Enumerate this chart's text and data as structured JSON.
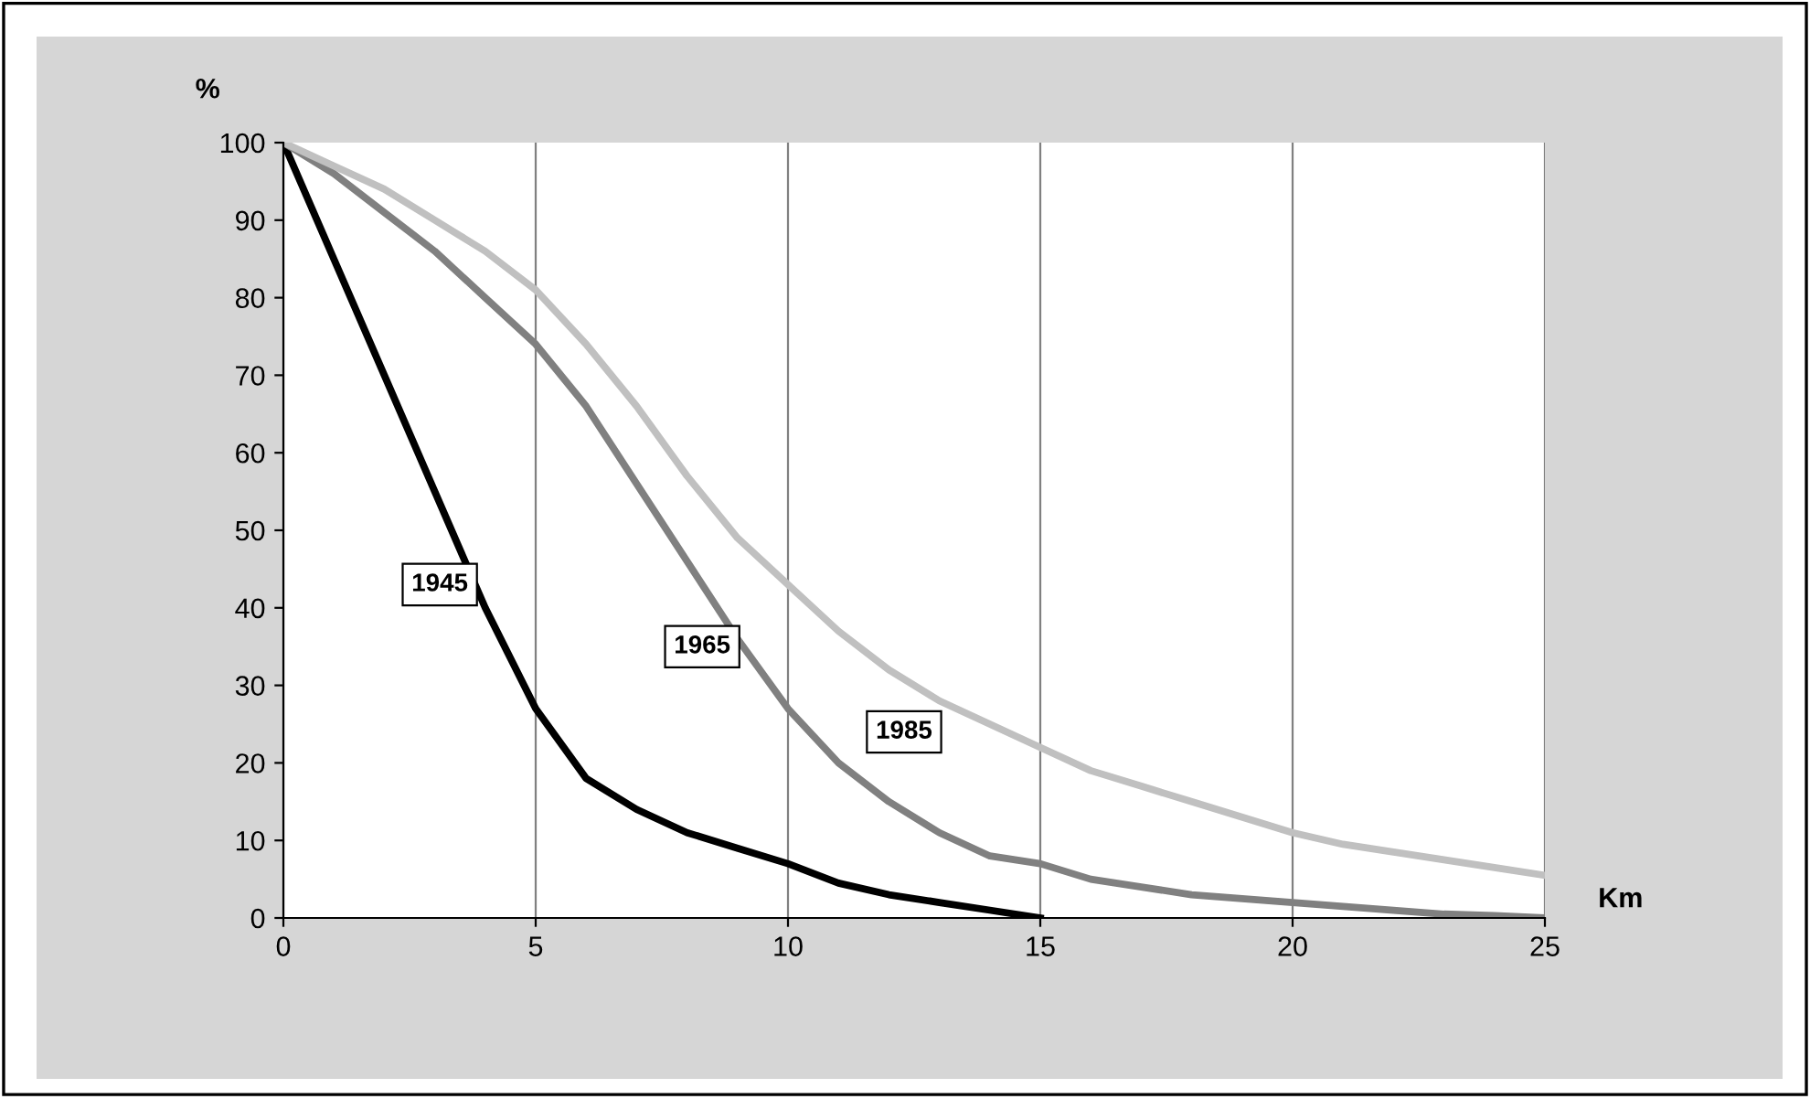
{
  "chart_data": {
    "type": "line",
    "xlabel": "Km",
    "ylabel": "%",
    "x": [
      0,
      1,
      2,
      3,
      4,
      5,
      6,
      7,
      8,
      9,
      10,
      11,
      12,
      13,
      14,
      15,
      16,
      17,
      18,
      19,
      20,
      21,
      22,
      23,
      24,
      25
    ],
    "series": [
      {
        "name": "1945",
        "color": "#000000",
        "x": [
          0,
          1,
          2,
          3,
          4,
          5,
          6,
          7,
          8,
          9,
          10,
          11,
          12,
          13,
          14,
          15
        ],
        "values": [
          100,
          85,
          70,
          55,
          40,
          27,
          18,
          14,
          11,
          9,
          7,
          4.5,
          3,
          2,
          1,
          0
        ]
      },
      {
        "name": "1965",
        "color": "#808080",
        "values": [
          100,
          96,
          91,
          86,
          80,
          74,
          66,
          56,
          46,
          36,
          27,
          20,
          15,
          11,
          8,
          7,
          5,
          4,
          3,
          2.5,
          2,
          1.5,
          1,
          0.5,
          0.3,
          0
        ]
      },
      {
        "name": "1985",
        "color": "#c0c0c0",
        "values": [
          100,
          97,
          94,
          90,
          86,
          81,
          74,
          66,
          57,
          49,
          43,
          37,
          32,
          28,
          25,
          22,
          19,
          17,
          15,
          13,
          11,
          9.5,
          8.5,
          7.5,
          6.5,
          5.5
        ]
      }
    ],
    "xlim": [
      0,
      25
    ],
    "ylim": [
      0,
      100
    ],
    "xticks": [
      0,
      5,
      10,
      15,
      20,
      25
    ],
    "yticks": [
      0,
      10,
      20,
      30,
      40,
      50,
      60,
      70,
      80,
      90,
      100
    ],
    "grid": "x",
    "legend": false,
    "marker": "none",
    "line_style": "solid"
  }
}
